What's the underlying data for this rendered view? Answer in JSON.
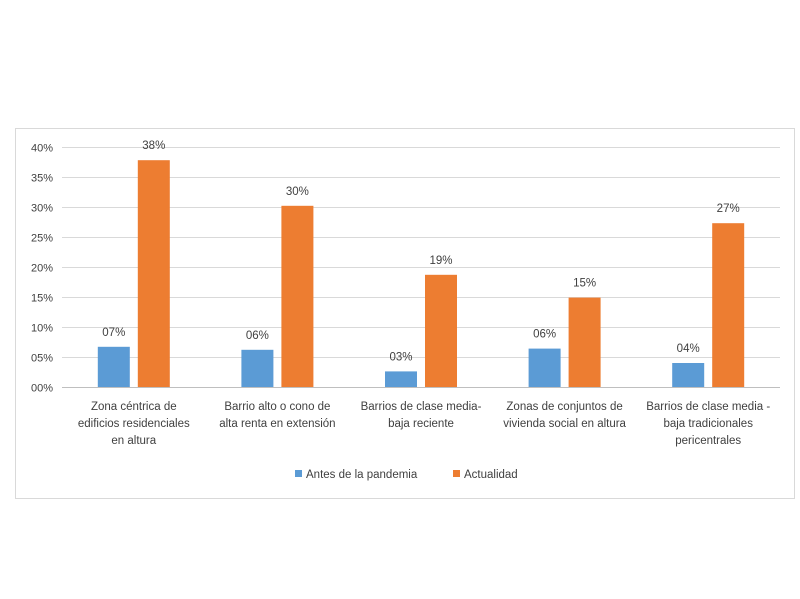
{
  "chart_data": {
    "type": "bar",
    "categories": [
      [
        "Zona céntrica de",
        "edificios residenciales",
        "en altura"
      ],
      [
        "Barrio alto o cono de",
        "alta renta en extensión"
      ],
      [
        "Barrios de clase media-",
        "baja reciente"
      ],
      [
        "Zonas de conjuntos de",
        "vivienda social en altura"
      ],
      [
        "Barrios de clase media -",
        "baja tradicionales",
        "pericentrales"
      ]
    ],
    "series": [
      {
        "name": "Antes de la pandemia",
        "color": "#5b9bd5",
        "values": [
          0.067,
          0.062,
          0.026,
          0.064,
          0.04
        ],
        "labels": [
          "07%",
          "06%",
          "03%",
          "06%",
          "04%"
        ]
      },
      {
        "name": "Actualidad",
        "color": "#ed7d31",
        "values": [
          0.378,
          0.302,
          0.187,
          0.149,
          0.273
        ],
        "labels": [
          "38%",
          "30%",
          "19%",
          "15%",
          "27%"
        ]
      }
    ],
    "ylim": [
      0,
      0.4
    ],
    "yticks": [
      0,
      0.05,
      0.1,
      0.15,
      0.2,
      0.25,
      0.3,
      0.35,
      0.4
    ],
    "ytick_labels": [
      "00%",
      "05%",
      "10%",
      "15%",
      "20%",
      "25%",
      "30%",
      "35%",
      "40%"
    ],
    "grid": true,
    "legend_position": "bottom"
  }
}
